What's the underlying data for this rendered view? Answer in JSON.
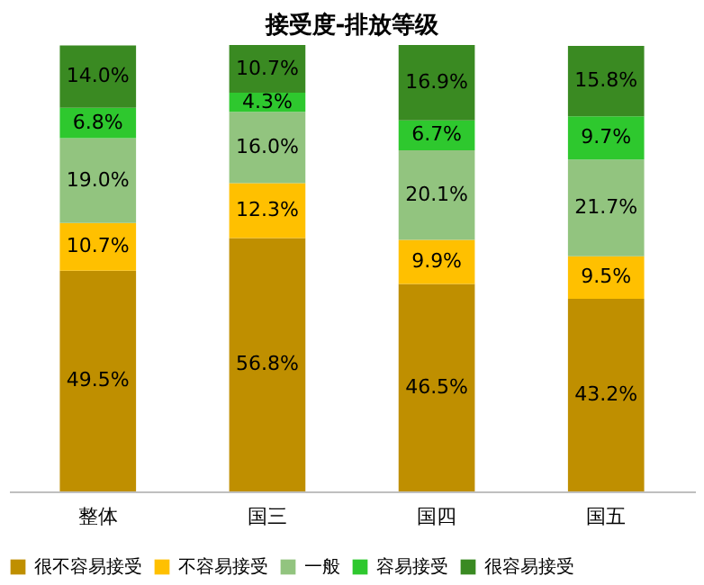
{
  "chart_data": {
    "type": "bar",
    "stacked": true,
    "title": "接受度-排放等级",
    "categories": [
      "整体",
      "国三",
      "国四",
      "国五"
    ],
    "series": [
      {
        "name": "很不容易接受",
        "color": "#bf8f00",
        "values": [
          49.5,
          56.8,
          46.5,
          43.2
        ],
        "value_labels": [
          "49.5%",
          "56.8%",
          "46.5%",
          "43.2%"
        ]
      },
      {
        "name": "不容易接受",
        "color": "#ffc000",
        "values": [
          10.7,
          12.3,
          9.9,
          9.5
        ],
        "value_labels": [
          "10.7%",
          "12.3%",
          "9.9%",
          "9.5%"
        ]
      },
      {
        "name": "一般",
        "color": "#92c47f",
        "values": [
          19.0,
          16.0,
          20.1,
          21.7
        ],
        "value_labels": [
          "19.0%",
          "16.0%",
          "20.1%",
          "21.7%"
        ]
      },
      {
        "name": "容易接受",
        "color": "#2ec82e",
        "values": [
          6.8,
          4.3,
          6.7,
          9.7
        ],
        "value_labels": [
          "6.8%",
          "4.3%",
          "6.7%",
          "9.7%"
        ]
      },
      {
        "name": "很容易接受",
        "color": "#3a8a22",
        "values": [
          14.0,
          10.7,
          16.9,
          15.8
        ],
        "value_labels": [
          "14.0%",
          "10.7%",
          "16.9%",
          "15.8%"
        ]
      }
    ],
    "legend": "bottom",
    "grid": false
  }
}
